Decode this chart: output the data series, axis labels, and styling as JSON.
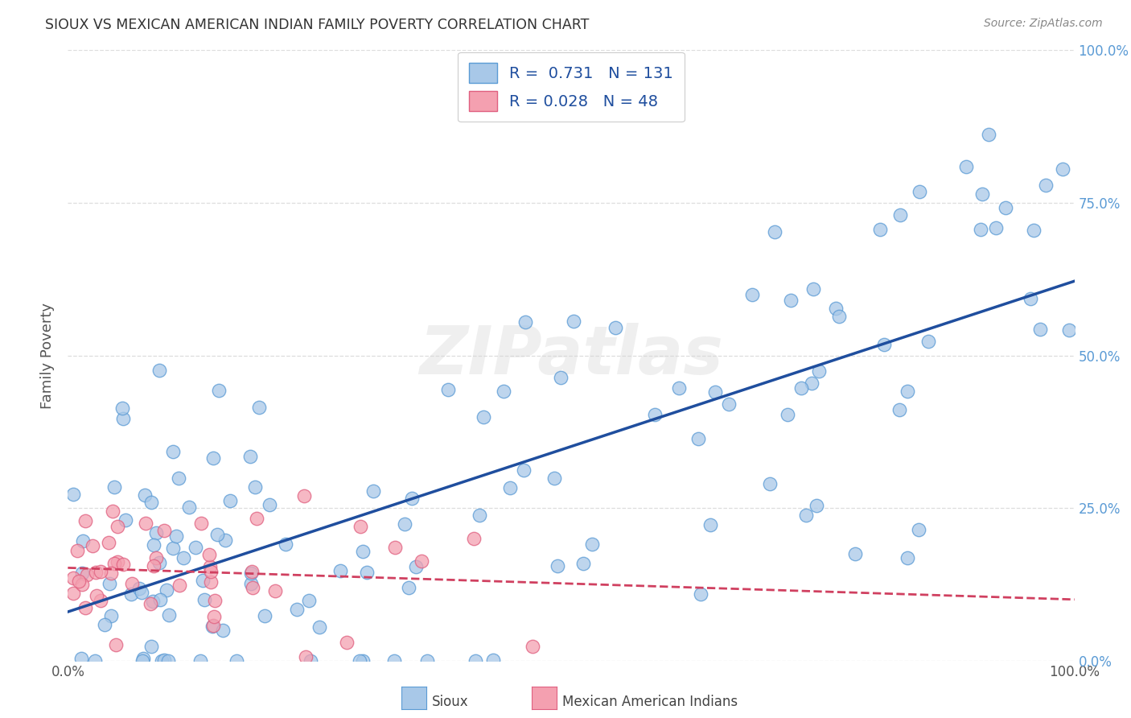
{
  "title": "SIOUX VS MEXICAN AMERICAN INDIAN FAMILY POVERTY CORRELATION CHART",
  "source": "Source: ZipAtlas.com",
  "ylabel": "Family Poverty",
  "watermark_zip": "ZIP",
  "watermark_atlas": "atlas",
  "legend_sioux": "R =  0.731   N = 131",
  "legend_mai": "R = 0.028   N = 48",
  "sioux_color": "#a8c8e8",
  "sioux_edge": "#5b9bd5",
  "mai_color": "#f4a0b0",
  "mai_edge": "#e06080",
  "sioux_line_color": "#1f4e9e",
  "mai_line_color": "#d04060",
  "background_color": "#ffffff",
  "grid_color": "#dddddd",
  "right_tick_color": "#5b9bd5",
  "title_color": "#333333",
  "source_color": "#888888",
  "ytick_values": [
    0,
    25,
    50,
    75,
    100
  ],
  "ytick_labels": [
    "0.0%",
    "25.0%",
    "50.0%",
    "75.0%",
    "100.0%"
  ],
  "xtick_left": "0.0%",
  "xtick_right": "100.0%",
  "bottom_legend_sioux": "Sioux",
  "bottom_legend_mai": "Mexican American Indians"
}
